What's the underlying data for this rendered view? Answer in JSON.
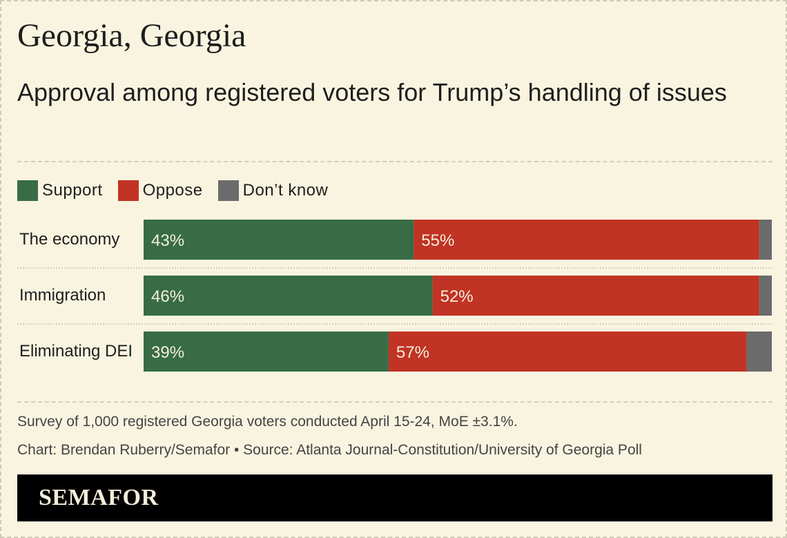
{
  "header": {
    "title": "Georgia, Georgia",
    "subtitle": "Approval among registered voters for Trump’s handling of issues"
  },
  "colors": {
    "support": "#386c45",
    "oppose": "#c13324",
    "dont_know": "#6b6b6b",
    "bar_text": "#f4efdc"
  },
  "legend": [
    {
      "label": "Support",
      "color_key": "support"
    },
    {
      "label": "Oppose",
      "color_key": "oppose"
    },
    {
      "label": "Don’t know",
      "color_key": "dont_know"
    }
  ],
  "chart_data": {
    "type": "bar",
    "orientation": "horizontal",
    "stacked": true,
    "categories": [
      "The economy",
      "Immigration",
      "Eliminating DEI"
    ],
    "series": [
      {
        "name": "Support",
        "values": [
          43,
          46,
          39
        ],
        "labels": [
          "43%",
          "46%",
          "39%"
        ]
      },
      {
        "name": "Oppose",
        "values": [
          55,
          52,
          57
        ],
        "labels": [
          "55%",
          "52%",
          "57%"
        ]
      },
      {
        "name": "Don’t know",
        "values": [
          2,
          2,
          4
        ],
        "labels": [
          "",
          "",
          ""
        ]
      }
    ],
    "xlim": [
      0,
      100
    ],
    "grid": false,
    "legend_position": "top-left"
  },
  "notes": {
    "survey": "Survey of 1,000 registered Georgia voters conducted April 15-24, MoE ±3.1%.",
    "credit": "Chart: Brendan Ruberry/Semafor • Source: Atlanta Journal-Constitution/University of Georgia Poll"
  },
  "footer": {
    "brand": "SEMAFOR"
  }
}
